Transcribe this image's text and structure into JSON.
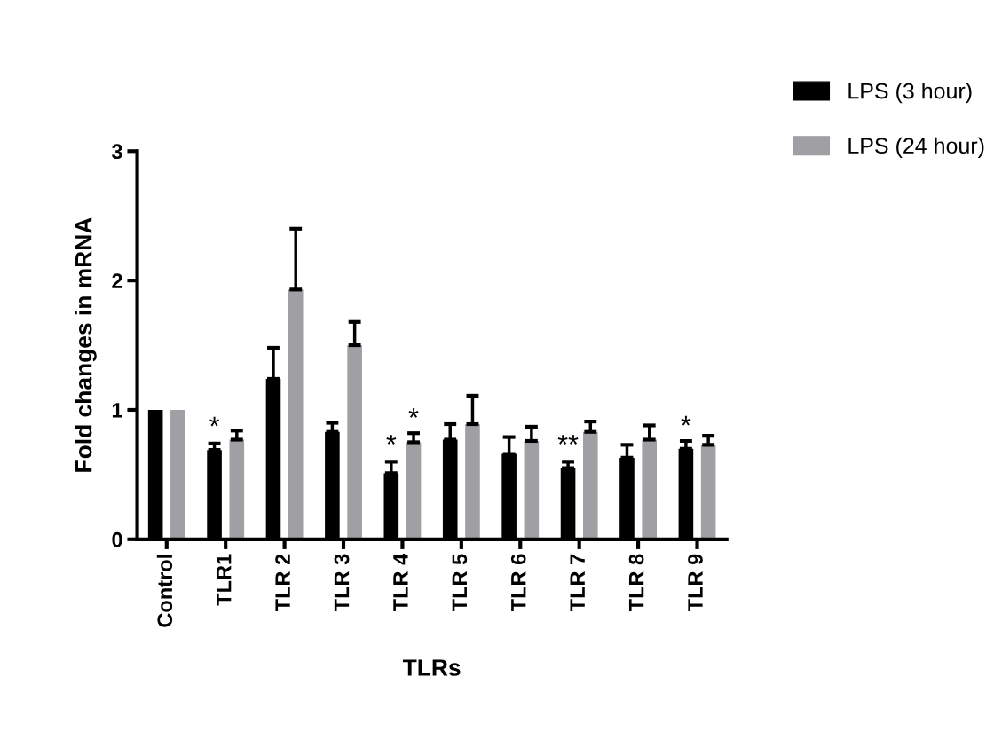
{
  "chart_data": {
    "type": "bar",
    "xlabel": "TLRs",
    "ylabel": "Fold changes in mRNA",
    "categories": [
      "Control",
      "TLR1",
      "TLR 2",
      "TLR 3",
      "TLR 4",
      "TLR 5",
      "TLR 6",
      "TLR 7",
      "TLR 8",
      "TLR 9"
    ],
    "series": [
      {
        "name": "LPS (3 hour)",
        "color": "#000000",
        "values": [
          1,
          0.69,
          1.24,
          0.83,
          0.51,
          0.77,
          0.66,
          0.55,
          0.63,
          0.7
        ],
        "errors": [
          null,
          0.05,
          0.24,
          0.07,
          0.09,
          0.12,
          0.13,
          0.05,
          0.1,
          0.06
        ]
      },
      {
        "name": "LPS (24 hour)",
        "color": "#a0a0a4",
        "values": [
          1,
          0.77,
          1.93,
          1.5,
          0.75,
          0.89,
          0.76,
          0.83,
          0.77,
          0.73
        ],
        "errors": [
          null,
          0.07,
          0.47,
          0.18,
          0.07,
          0.22,
          0.11,
          0.08,
          0.11,
          0.07
        ]
      }
    ],
    "ylim": [
      0,
      3
    ],
    "yticks": [
      0,
      1,
      2,
      3
    ],
    "grid": false,
    "legend": "top right",
    "annotations": [
      {
        "text": "*",
        "x": "TLR1",
        "y": 0.74
      },
      {
        "text": "*",
        "x": "TLR 4",
        "y": 0.6
      },
      "*",
      {
        "text": "**",
        "x": "TLR 7",
        "y": 0.6
      },
      "*"
    ]
  }
}
